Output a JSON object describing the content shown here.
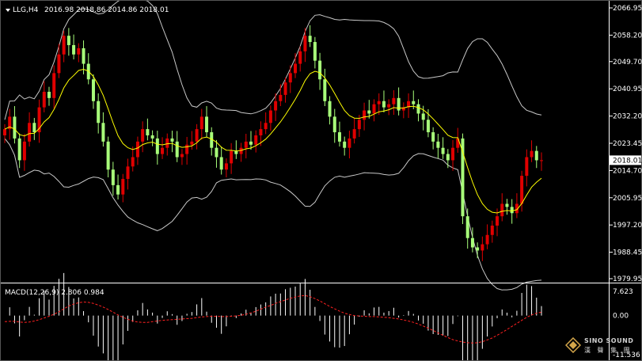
{
  "header": {
    "symbol_tf": "LLG,H4",
    "ohlc": "2016.98 2018.86 2014.86 2018.01",
    "arrow_icon": "triangle-down-icon"
  },
  "macd_header": {
    "label": "MACD(12,26,9) 2.806 0.984"
  },
  "logo": {
    "name": "SINO SOUND",
    "sub": "漢 聲 集 團"
  },
  "colors": {
    "bull": "#e00000",
    "bear": "#a8ff7a",
    "ma": "#ffff00",
    "bands": "#c8c8c8",
    "macd_hist": "#ffffff",
    "macd_signal": "#ff2020",
    "background": "#000000",
    "current_price_box": "#ffffff"
  },
  "chart_data": [
    {
      "type": "candlestick",
      "title": "LLG,H4",
      "ohlc_last": [
        2016.98,
        2018.86,
        2014.86,
        2018.01
      ],
      "current_price": "2018.01",
      "y_ticks": [
        "2066.95",
        "2058.20",
        "2049.70",
        "2040.95",
        "2032.20",
        "2023.45",
        "2014.70",
        "2005.95",
        "1997.20",
        "1988.45",
        "1979.95"
      ],
      "ylim": [
        1979.95,
        2066.95
      ],
      "overlays": [
        "moving-average",
        "bollinger-bands"
      ],
      "close": [
        2028,
        2032,
        2025,
        2018,
        2024,
        2030,
        2027,
        2035,
        2040,
        2038,
        2046,
        2052,
        2058,
        2055,
        2052,
        2054,
        2049,
        2044,
        2037,
        2030,
        2024,
        2015,
        2010,
        2007,
        2012,
        2016,
        2019,
        2024,
        2028,
        2026,
        2025,
        2020,
        2022,
        2025,
        2024,
        2019,
        2020,
        2023,
        2024,
        2028,
        2032,
        2027,
        2022,
        2019,
        2015,
        2017,
        2021,
        2020,
        2022,
        2024,
        2023,
        2026,
        2028,
        2030,
        2034,
        2037,
        2039,
        2043,
        2046,
        2049,
        2053,
        2058,
        2056,
        2050,
        2044,
        2037,
        2032,
        2027,
        2024,
        2022,
        2025,
        2028,
        2031,
        2034,
        2033,
        2036,
        2037,
        2035,
        2036,
        2038,
        2034,
        2035,
        2037,
        2036,
        2033,
        2031,
        2027,
        2024,
        2022,
        2020,
        2018,
        2022,
        2025,
        2000,
        1993,
        1990,
        1989,
        1991,
        1994,
        1997,
        2000,
        2004,
        2003,
        2001,
        2004,
        2013,
        2019,
        2021,
        2018,
        2018.01
      ],
      "signal": [
        -1.8,
        -1.7,
        -1.7,
        -1.9,
        -2.0,
        -1.9,
        -1.6,
        -1.2,
        -0.7,
        -0.2,
        0.4,
        1.1,
        2.0,
        2.8,
        3.4,
        3.8,
        4.0,
        3.9,
        3.6,
        3.1,
        2.5,
        1.8,
        1.0,
        0.2,
        -0.5,
        -1.1,
        -1.6,
        -1.9,
        -2.0,
        -2.0,
        -1.8,
        -1.6,
        -1.4,
        -1.3,
        -1.2,
        -1.1,
        -1.0,
        -0.9,
        -0.8,
        -0.6,
        -0.4,
        -0.3,
        -0.2,
        -0.2,
        -0.3,
        -0.3,
        -0.2,
        -0.1,
        0.1,
        0.4,
        0.8,
        1.3,
        1.9,
        2.5,
        3.0,
        3.6,
        4.1,
        4.6,
        5.1,
        5.5,
        5.8,
        5.9,
        5.6,
        5.0,
        4.3,
        3.5,
        2.7,
        2.0,
        1.3,
        0.7,
        0.3,
        0.0,
        -0.1,
        -0.2,
        -0.3,
        -0.3,
        -0.4,
        -0.5,
        -0.6,
        -0.8,
        -1.0,
        -1.3,
        -1.6,
        -2.0,
        -2.5,
        -3.1,
        -3.7,
        -4.4,
        -5.1,
        -5.8,
        -6.5,
        -7.1,
        -7.5,
        -7.8,
        -8.0,
        -8.1,
        -8.0,
        -7.7,
        -7.2,
        -6.6,
        -5.8,
        -5.0,
        -4.1,
        -3.2,
        -2.3,
        -1.4,
        -0.5,
        0.2,
        0.7,
        0.984
      ],
      "macd_label": "MACD(12,26,9)",
      "macd_last": [
        2.806,
        0.984
      ],
      "macd_ticks": [
        "7.623",
        "0.00",
        "-11.536"
      ],
      "macd_ylim": [
        -11.536,
        7.623
      ]
    }
  ]
}
